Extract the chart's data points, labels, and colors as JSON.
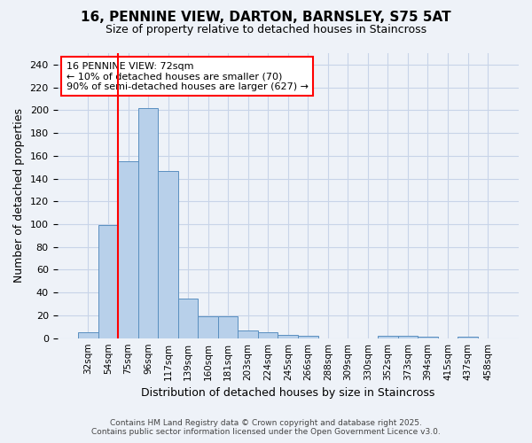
{
  "title1": "16, PENNINE VIEW, DARTON, BARNSLEY, S75 5AT",
  "title2": "Size of property relative to detached houses in Staincross",
  "xlabel": "Distribution of detached houses by size in Staincross",
  "ylabel": "Number of detached properties",
  "footnote1": "Contains HM Land Registry data © Crown copyright and database right 2025.",
  "footnote2": "Contains public sector information licensed under the Open Government Licence v3.0.",
  "bin_labels": [
    "32sqm",
    "54sqm",
    "75sqm",
    "96sqm",
    "117sqm",
    "139sqm",
    "160sqm",
    "181sqm",
    "203sqm",
    "224sqm",
    "245sqm",
    "266sqm",
    "288sqm",
    "309sqm",
    "330sqm",
    "352sqm",
    "373sqm",
    "394sqm",
    "415sqm",
    "437sqm",
    "458sqm"
  ],
  "bar_heights": [
    5,
    99,
    155,
    202,
    147,
    35,
    19,
    19,
    7,
    5,
    3,
    2,
    0,
    0,
    0,
    2,
    2,
    1,
    0,
    1,
    0
  ],
  "bar_color": "#b8d0ea",
  "bar_edge_color": "#5a8fc0",
  "grid_color": "#c8d4e8",
  "background_color": "#eef2f8",
  "red_line_x": 1.5,
  "annotation_text": "16 PENNINE VIEW: 72sqm\n← 10% of detached houses are smaller (70)\n90% of semi-detached houses are larger (627) →",
  "annotation_box_color": "white",
  "annotation_box_edge": "red",
  "ylim": [
    0,
    250
  ],
  "yticks": [
    0,
    20,
    40,
    60,
    80,
    100,
    120,
    140,
    160,
    180,
    200,
    220,
    240
  ]
}
